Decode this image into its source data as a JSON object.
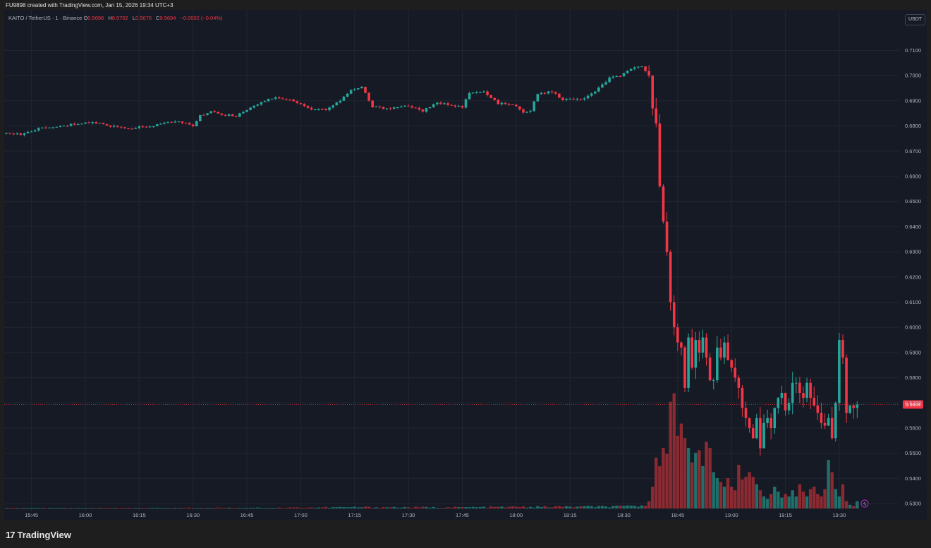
{
  "caption": "FU9898 created with TradingView.com, Jan 15, 2026 19:34 UTC+3",
  "legend": {
    "symbol": "KAITO / TetherUS · 1 · Binance",
    "o_label": "O",
    "o": "0.5696",
    "h_label": "H",
    "h": "0.5702",
    "l_label": "L",
    "l": "0.5670",
    "c_label": "C",
    "c": "0.5694",
    "change": "−0.0002 (−0.04%)"
  },
  "currency_badge": "USDT",
  "last_price_label": "0.5694",
  "logo_text": "TradingView",
  "colors": {
    "up": "#26a69a",
    "down": "#f23645",
    "up_vol": "#1f6f6a",
    "down_vol": "#8c2a32",
    "grid": "#222632",
    "bg": "#161a25"
  },
  "chart_data": {
    "type": "candlestick",
    "interval": "1 minute",
    "last_price": 0.5694,
    "ylim": [
      0.5275,
      0.7145
    ],
    "yticks": [
      "0.7100",
      "0.7000",
      "0.6900",
      "0.6800",
      "0.6700",
      "0.6600",
      "0.6500",
      "0.6400",
      "0.6300",
      "0.6200",
      "0.6100",
      "0.6000",
      "0.5900",
      "0.5800",
      "0.5700",
      "0.5600",
      "0.5500",
      "0.5400",
      "0.5300"
    ],
    "xticks": [
      {
        "label": "15:45",
        "minute": 945
      },
      {
        "label": "16:00",
        "minute": 960
      },
      {
        "label": "16:15",
        "minute": 975
      },
      {
        "label": "16:30",
        "minute": 990
      },
      {
        "label": "16:45",
        "minute": 1005
      },
      {
        "label": "17:00",
        "minute": 1020
      },
      {
        "label": "17:15",
        "minute": 1035
      },
      {
        "label": "17:30",
        "minute": 1050
      },
      {
        "label": "17:45",
        "minute": 1065
      },
      {
        "label": "18:00",
        "minute": 1080
      },
      {
        "label": "18:15",
        "minute": 1095
      },
      {
        "label": "18:30",
        "minute": 1110
      },
      {
        "label": "18:45",
        "minute": 1125
      },
      {
        "label": "19:00",
        "minute": 1140
      },
      {
        "label": "19:15",
        "minute": 1155
      },
      {
        "label": "19:30",
        "minute": 1170
      }
    ],
    "first_minute": 938,
    "close_path": [
      [
        938,
        0.677
      ],
      [
        942,
        0.6765
      ],
      [
        947,
        0.679
      ],
      [
        952,
        0.6795
      ],
      [
        958,
        0.681
      ],
      [
        962,
        0.6815
      ],
      [
        967,
        0.68
      ],
      [
        973,
        0.679
      ],
      [
        980,
        0.6805
      ],
      [
        986,
        0.682
      ],
      [
        990,
        0.68
      ],
      [
        992,
        0.684
      ],
      [
        995,
        0.686
      ],
      [
        998,
        0.6845
      ],
      [
        1002,
        0.684
      ],
      [
        1006,
        0.6875
      ],
      [
        1010,
        0.69
      ],
      [
        1013,
        0.6915
      ],
      [
        1018,
        0.69
      ],
      [
        1022,
        0.687
      ],
      [
        1027,
        0.6865
      ],
      [
        1030,
        0.689
      ],
      [
        1034,
        0.694
      ],
      [
        1037,
        0.6955
      ],
      [
        1040,
        0.6875
      ],
      [
        1044,
        0.687
      ],
      [
        1050,
        0.688
      ],
      [
        1054,
        0.686
      ],
      [
        1058,
        0.689
      ],
      [
        1062,
        0.6885
      ],
      [
        1065,
        0.6875
      ],
      [
        1067,
        0.693
      ],
      [
        1071,
        0.6935
      ],
      [
        1073,
        0.691
      ],
      [
        1075,
        0.689
      ],
      [
        1080,
        0.688
      ],
      [
        1082,
        0.685
      ],
      [
        1084,
        0.686
      ],
      [
        1086,
        0.693
      ],
      [
        1090,
        0.6935
      ],
      [
        1093,
        0.6905
      ],
      [
        1098,
        0.6905
      ],
      [
        1102,
        0.6935
      ],
      [
        1106,
        0.699
      ],
      [
        1109,
        0.7
      ],
      [
        1113,
        0.703
      ],
      [
        1115,
        0.7035
      ],
      [
        1117,
        0.7
      ],
      [
        1118,
        0.687
      ],
      [
        1119,
        0.681
      ],
      [
        1120,
        0.656
      ],
      [
        1121,
        0.642
      ],
      [
        1122,
        0.63
      ],
      [
        1123,
        0.61
      ],
      [
        1124,
        0.6
      ],
      [
        1125,
        0.594
      ],
      [
        1126,
        0.592
      ],
      [
        1127,
        0.576
      ],
      [
        1128,
        0.596
      ],
      [
        1129,
        0.584
      ],
      [
        1130,
        0.595
      ],
      [
        1131,
        0.59
      ],
      [
        1132,
        0.596
      ],
      [
        1133,
        0.588
      ],
      [
        1134,
        0.579
      ],
      [
        1135,
        0.579
      ],
      [
        1136,
        0.592
      ],
      [
        1137,
        0.588
      ],
      [
        1138,
        0.594
      ],
      [
        1139,
        0.587
      ],
      [
        1140,
        0.584
      ],
      [
        1141,
        0.58
      ],
      [
        1142,
        0.576
      ],
      [
        1143,
        0.568
      ],
      [
        1144,
        0.564
      ],
      [
        1145,
        0.56
      ],
      [
        1146,
        0.556
      ],
      [
        1147,
        0.564
      ],
      [
        1148,
        0.552
      ],
      [
        1149,
        0.562
      ],
      [
        1150,
        0.564
      ],
      [
        1151,
        0.56
      ],
      [
        1152,
        0.568
      ],
      [
        1153,
        0.572
      ],
      [
        1154,
        0.574
      ],
      [
        1155,
        0.567
      ],
      [
        1156,
        0.57
      ],
      [
        1157,
        0.578
      ],
      [
        1158,
        0.578
      ],
      [
        1159,
        0.574
      ],
      [
        1160,
        0.572
      ],
      [
        1161,
        0.578
      ],
      [
        1162,
        0.572
      ],
      [
        1163,
        0.569
      ],
      [
        1164,
        0.566
      ],
      [
        1165,
        0.562
      ],
      [
        1166,
        0.561
      ],
      [
        1167,
        0.564
      ],
      [
        1168,
        0.556
      ],
      [
        1169,
        0.57
      ],
      [
        1170,
        0.595
      ],
      [
        1171,
        0.588
      ],
      [
        1172,
        0.566
      ],
      [
        1173,
        0.569
      ],
      [
        1174,
        0.568
      ],
      [
        1175,
        0.5694
      ]
    ],
    "volume_profile": [
      [
        938,
        0.3
      ],
      [
        1000,
        0.6
      ],
      [
        1020,
        0.8
      ],
      [
        1035,
        1.2
      ],
      [
        1060,
        1.0
      ],
      [
        1080,
        1.4
      ],
      [
        1110,
        1.8
      ],
      [
        1116,
        3.0
      ],
      [
        1117,
        6
      ],
      [
        1118,
        18
      ],
      [
        1119,
        42
      ],
      [
        1120,
        35
      ],
      [
        1121,
        50
      ],
      [
        1122,
        45
      ],
      [
        1123,
        88
      ],
      [
        1124,
        95
      ],
      [
        1125,
        60
      ],
      [
        1126,
        70
      ],
      [
        1127,
        58
      ],
      [
        1128,
        50
      ],
      [
        1129,
        38
      ],
      [
        1130,
        46
      ],
      [
        1131,
        48
      ],
      [
        1132,
        35
      ],
      [
        1133,
        55
      ],
      [
        1134,
        50
      ],
      [
        1135,
        30
      ],
      [
        1136,
        25
      ],
      [
        1137,
        22
      ],
      [
        1138,
        18
      ],
      [
        1139,
        25
      ],
      [
        1140,
        18
      ],
      [
        1141,
        15
      ],
      [
        1142,
        36
      ],
      [
        1143,
        24
      ],
      [
        1144,
        26
      ],
      [
        1145,
        30
      ],
      [
        1146,
        26
      ],
      [
        1147,
        20
      ],
      [
        1148,
        15
      ],
      [
        1149,
        10
      ],
      [
        1150,
        8
      ],
      [
        1151,
        12
      ],
      [
        1152,
        18
      ],
      [
        1153,
        14
      ],
      [
        1154,
        9
      ],
      [
        1155,
        12
      ],
      [
        1156,
        10
      ],
      [
        1157,
        15
      ],
      [
        1158,
        10
      ],
      [
        1159,
        20
      ],
      [
        1160,
        14
      ],
      [
        1161,
        10
      ],
      [
        1162,
        16
      ],
      [
        1163,
        18
      ],
      [
        1164,
        12
      ],
      [
        1165,
        10
      ],
      [
        1166,
        16
      ],
      [
        1167,
        40
      ],
      [
        1168,
        30
      ],
      [
        1169,
        16
      ],
      [
        1170,
        10
      ],
      [
        1171,
        20
      ],
      [
        1172,
        6
      ],
      [
        1173,
        3
      ],
      [
        1174,
        2
      ],
      [
        1175,
        6
      ]
    ]
  }
}
